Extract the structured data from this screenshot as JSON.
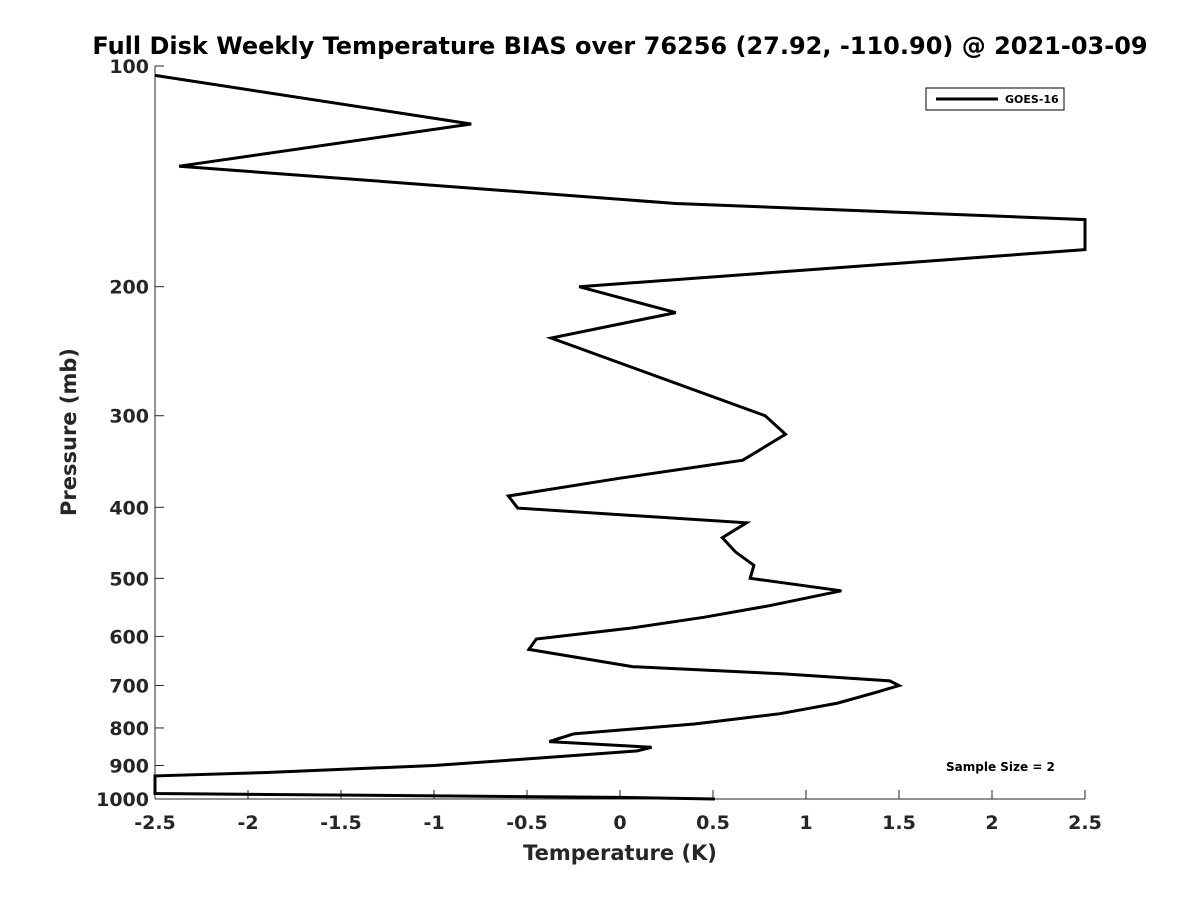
{
  "chart_data": {
    "type": "line",
    "title": "Full Disk Weekly Temperature BIAS over 76256 (27.92, -110.90) @ 2021-03-09",
    "xlabel": "Temperature (K)",
    "ylabel": "Pressure (mb)",
    "xlim": [
      -2.5,
      2.5
    ],
    "ylim": [
      100,
      1000
    ],
    "y_scale": "log",
    "y_reversed": true,
    "x_ticks": [
      -2.5,
      -2,
      -1.5,
      -1,
      -0.5,
      0,
      0.5,
      1,
      1.5,
      2,
      2.5
    ],
    "x_tick_labels": [
      "-2.5",
      "-2",
      "-1.5",
      "-1",
      "-0.5",
      "0",
      "0.5",
      "1",
      "1.5",
      "2",
      "2.5"
    ],
    "y_ticks": [
      100,
      200,
      300,
      400,
      500,
      600,
      700,
      800,
      900,
      1000
    ],
    "y_tick_labels": [
      "100",
      "200",
      "300",
      "400",
      "500",
      "600",
      "700",
      "800",
      "900",
      "1000"
    ],
    "grid": false,
    "legend_position": "top-right",
    "annotation": "Sample Size = 2",
    "series": [
      {
        "name": "GOES-16",
        "color": "#000000",
        "points": [
          {
            "x": -2.5,
            "y": 103
          },
          {
            "x": -0.8,
            "y": 120
          },
          {
            "x": -2.37,
            "y": 137
          },
          {
            "x": 0.3,
            "y": 154
          },
          {
            "x": 2.5,
            "y": 162
          },
          {
            "x": 2.5,
            "y": 178
          },
          {
            "x": -0.22,
            "y": 200
          },
          {
            "x": 0.3,
            "y": 217
          },
          {
            "x": -0.37,
            "y": 235
          },
          {
            "x": 0.78,
            "y": 300
          },
          {
            "x": 0.89,
            "y": 318
          },
          {
            "x": 0.66,
            "y": 345
          },
          {
            "x": 0.0,
            "y": 365
          },
          {
            "x": -0.6,
            "y": 386
          },
          {
            "x": -0.55,
            "y": 401
          },
          {
            "x": 0.68,
            "y": 420
          },
          {
            "x": 0.55,
            "y": 440
          },
          {
            "x": 0.62,
            "y": 460
          },
          {
            "x": 0.72,
            "y": 480
          },
          {
            "x": 0.7,
            "y": 500
          },
          {
            "x": 1.19,
            "y": 520
          },
          {
            "x": 0.8,
            "y": 545
          },
          {
            "x": 0.45,
            "y": 565
          },
          {
            "x": 0.05,
            "y": 585
          },
          {
            "x": -0.45,
            "y": 605
          },
          {
            "x": -0.49,
            "y": 625
          },
          {
            "x": 0.07,
            "y": 660
          },
          {
            "x": 0.88,
            "y": 675
          },
          {
            "x": 1.45,
            "y": 690
          },
          {
            "x": 1.5,
            "y": 700
          },
          {
            "x": 1.38,
            "y": 715
          },
          {
            "x": 1.17,
            "y": 740
          },
          {
            "x": 0.86,
            "y": 765
          },
          {
            "x": 0.4,
            "y": 790
          },
          {
            "x": -0.25,
            "y": 815
          },
          {
            "x": -0.38,
            "y": 835
          },
          {
            "x": 0.17,
            "y": 850
          },
          {
            "x": 0.09,
            "y": 860
          },
          {
            "x": -0.45,
            "y": 880
          },
          {
            "x": -1.0,
            "y": 900
          },
          {
            "x": -1.9,
            "y": 920
          },
          {
            "x": -2.5,
            "y": 930
          },
          {
            "x": -2.5,
            "y": 983
          },
          {
            "x": 0.0,
            "y": 995
          },
          {
            "x": 0.51,
            "y": 1000
          }
        ]
      }
    ]
  }
}
